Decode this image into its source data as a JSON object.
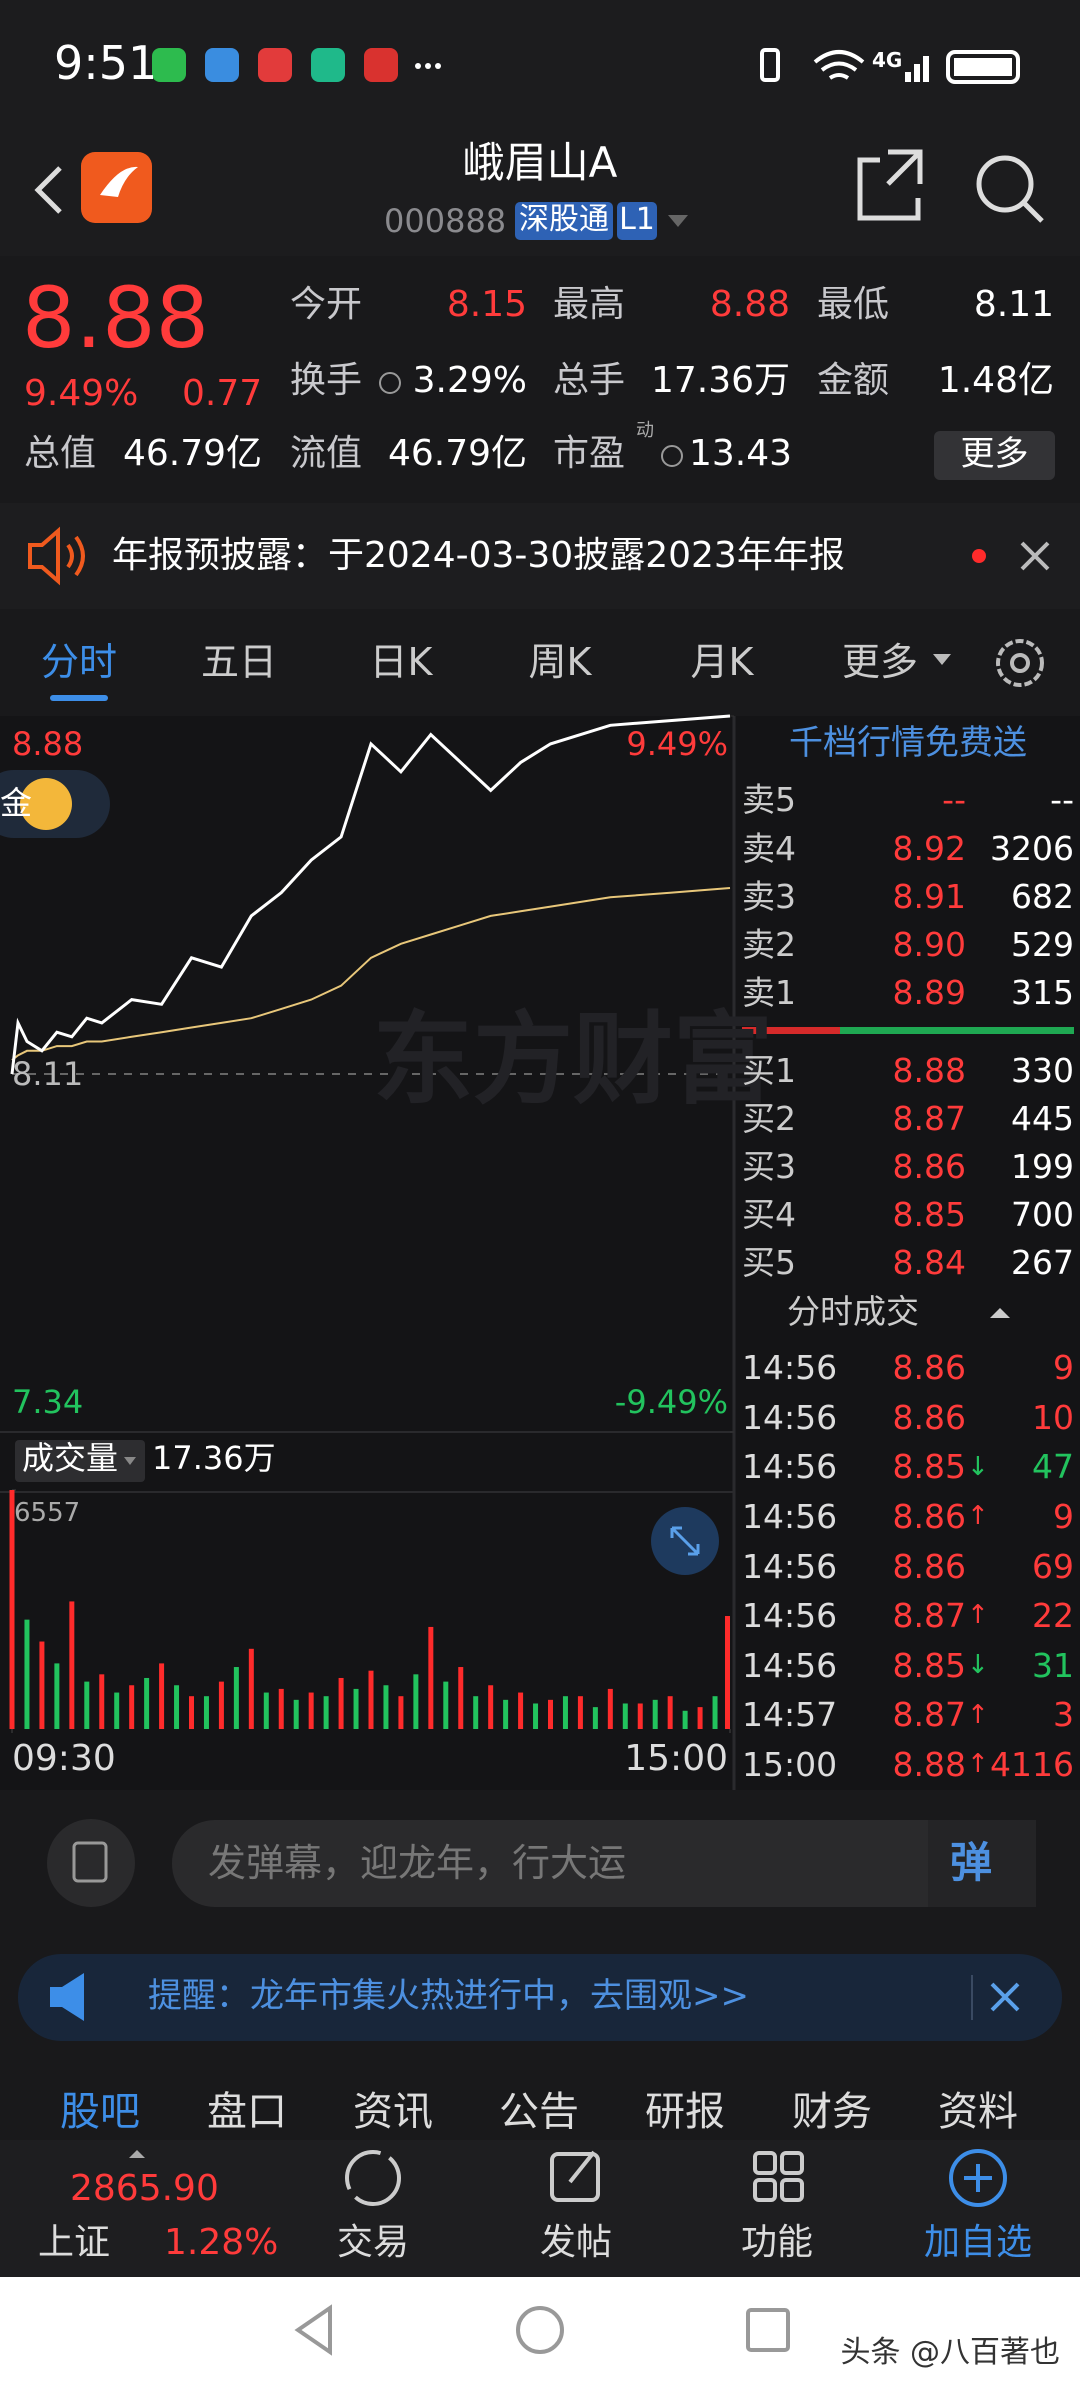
{
  "status_bar": {
    "time": "9:51",
    "network": "4G"
  },
  "header": {
    "title": "峨眉山A",
    "code": "000888",
    "badge": "深股通",
    "level": "L1"
  },
  "quote": {
    "price": "8.88",
    "change_pct": "9.49%",
    "change": "0.77",
    "fields": [
      {
        "label": "今开",
        "value": "8.15",
        "color": "#ff3b3b"
      },
      {
        "label": "最高",
        "value": "8.88",
        "color": "#ff3b3b"
      },
      {
        "label": "最低",
        "value": "8.11",
        "color": "#ffffff"
      },
      {
        "label": "换手",
        "value": "3.29%",
        "color": "#ffffff"
      },
      {
        "label": "总手",
        "value": "17.36万",
        "color": "#ffffff"
      },
      {
        "label": "金额",
        "value": "1.48亿",
        "color": "#ffffff"
      },
      {
        "label": "总值",
        "value": "46.79亿",
        "color": "#ffffff"
      },
      {
        "label": "流值",
        "value": "46.79亿",
        "color": "#ffffff"
      },
      {
        "label": "市盈",
        "value": "13.43",
        "color": "#ffffff"
      }
    ],
    "pe_superscript": "动",
    "more": "更多"
  },
  "notice": {
    "text": "年报预披露：于2024-03-30披露2023年年报"
  },
  "tabs": [
    "分时",
    "五日",
    "日K",
    "周K",
    "月K",
    "更多"
  ],
  "chart_watermark": "东方财富",
  "coin_badge": "金",
  "chart_data": [
    {
      "type": "line",
      "ylim": [
        7.34,
        8.88
      ],
      "yticks": [
        8.88,
        8.11,
        7.34
      ],
      "ytick_colors": [
        "#ff3b3b",
        "#bbbbbb",
        "#22c35e"
      ],
      "y2lim": [
        -9.49,
        9.49
      ],
      "y2ticks": [
        {
          "value": 9.49,
          "label": "9.49%"
        },
        {
          "value": -9.49,
          "label": "-9.49%"
        }
      ],
      "y2tick_colors": [
        "#ff3b3b",
        "#22c35e"
      ],
      "xlim": [
        0,
        240
      ],
      "series": [
        {
          "name": "价格",
          "color": "#ffffff",
          "x": [
            0,
            2,
            5,
            10,
            15,
            20,
            25,
            30,
            40,
            50,
            60,
            70,
            80,
            90,
            100,
            110,
            120,
            130,
            140,
            150,
            160,
            170,
            180,
            200,
            220,
            240
          ],
          "values": [
            8.11,
            8.22,
            8.18,
            8.16,
            8.2,
            8.19,
            8.23,
            8.22,
            8.27,
            8.26,
            8.36,
            8.34,
            8.45,
            8.5,
            8.57,
            8.62,
            8.82,
            8.76,
            8.84,
            8.78,
            8.72,
            8.78,
            8.82,
            8.86,
            8.87,
            8.88
          ]
        },
        {
          "name": "均价",
          "color": "#e8c77a",
          "x": [
            0,
            2,
            5,
            10,
            15,
            20,
            25,
            30,
            40,
            50,
            60,
            70,
            80,
            90,
            100,
            110,
            120,
            130,
            140,
            150,
            160,
            170,
            180,
            200,
            220,
            240
          ],
          "values": [
            8.14,
            8.15,
            8.16,
            8.16,
            8.17,
            8.17,
            8.18,
            8.18,
            8.19,
            8.2,
            8.21,
            8.22,
            8.23,
            8.25,
            8.27,
            8.3,
            8.36,
            8.39,
            8.41,
            8.43,
            8.45,
            8.46,
            8.47,
            8.49,
            8.5,
            8.51
          ]
        }
      ]
    },
    {
      "type": "bar",
      "title": "成交量",
      "total": "17.36万",
      "ylim": [
        0,
        6557
      ],
      "yticks": [
        6557
      ],
      "xlim": [
        0,
        240
      ],
      "xticks": [
        {
          "value": 0,
          "label": "09:30"
        },
        {
          "value": 240,
          "label": "15:00"
        }
      ],
      "series": [
        {
          "color": "#ff2b2b",
          "x": [
            0,
            10,
            20,
            30,
            40,
            50,
            60,
            70,
            80,
            90,
            100,
            110,
            120,
            130,
            140,
            150,
            160,
            170,
            180,
            190,
            200,
            210,
            220,
            230,
            240
          ],
          "values": [
            6557,
            2400,
            3500,
            1500,
            1200,
            1800,
            900,
            1300,
            2200,
            1100,
            1000,
            1400,
            1600,
            900,
            2800,
            1700,
            1200,
            1000,
            800,
            900,
            1100,
            700,
            900,
            600,
            3100
          ]
        },
        {
          "color": "#22c35e",
          "x": [
            5,
            15,
            25,
            35,
            45,
            55,
            65,
            75,
            85,
            95,
            105,
            115,
            125,
            135,
            145,
            155,
            165,
            175,
            185,
            195,
            205,
            215,
            225,
            235
          ],
          "values": [
            3000,
            1800,
            1300,
            1000,
            1400,
            1200,
            900,
            1700,
            1000,
            800,
            900,
            1100,
            1200,
            1500,
            1300,
            900,
            800,
            700,
            900,
            600,
            700,
            800,
            500,
            900
          ]
        }
      ]
    }
  ],
  "order_book": {
    "banner": "千档行情免费送",
    "asks": [
      {
        "label": "卖5",
        "price": "--",
        "volume": "--"
      },
      {
        "label": "卖4",
        "price": "8.92",
        "volume": "3206"
      },
      {
        "label": "卖3",
        "price": "8.91",
        "volume": "682"
      },
      {
        "label": "卖2",
        "price": "8.90",
        "volume": "529"
      },
      {
        "label": "卖1",
        "price": "8.89",
        "volume": "315"
      }
    ],
    "bids": [
      {
        "label": "买1",
        "price": "8.88",
        "volume": "330"
      },
      {
        "label": "买2",
        "price": "8.87",
        "volume": "445"
      },
      {
        "label": "买3",
        "price": "8.86",
        "volume": "199"
      },
      {
        "label": "买4",
        "price": "8.85",
        "volume": "700"
      },
      {
        "label": "买5",
        "price": "8.84",
        "volume": "267"
      }
    ]
  },
  "trades": {
    "title": "分时成交",
    "rows": [
      {
        "time": "14:56",
        "price": "8.86",
        "volume": "9",
        "color": "#ff3b3b"
      },
      {
        "time": "14:56",
        "price": "8.86",
        "volume": "10",
        "color": "#ff3b3b"
      },
      {
        "time": "14:56",
        "price": "8.85",
        "arrow": "↓",
        "volume": "47",
        "color": "#22c35e"
      },
      {
        "time": "14:56",
        "price": "8.86",
        "arrow": "↑",
        "volume": "9",
        "color": "#ff3b3b"
      },
      {
        "time": "14:56",
        "price": "8.86",
        "volume": "69",
        "color": "#ff3b3b"
      },
      {
        "time": "14:56",
        "price": "8.87",
        "arrow": "↑",
        "volume": "22",
        "color": "#ff3b3b"
      },
      {
        "time": "14:56",
        "price": "8.85",
        "arrow": "↓",
        "volume": "31",
        "color": "#22c35e"
      },
      {
        "time": "14:57",
        "price": "8.87",
        "arrow": "↑",
        "volume": "3",
        "color": "#ff3b3b"
      },
      {
        "time": "15:00",
        "price": "8.88",
        "arrow": "↑",
        "volume": "4116",
        "color": "#ff3b3b"
      }
    ]
  },
  "comment": {
    "placeholder": "发弹幕，迎龙年，行大运",
    "button": "弹"
  },
  "reminder": {
    "text": "提醒：龙年市集火热进行中，去围观>>"
  },
  "bottom_tabs": [
    "股吧",
    "盘口",
    "资讯",
    "公告",
    "研报",
    "财务",
    "资料"
  ],
  "nav": {
    "index_name": "上证",
    "index_value": "2865.90",
    "index_change": "1.28%",
    "items": [
      "交易",
      "发帖",
      "功能",
      "加自选"
    ]
  },
  "watermark": "头条 @八百著也"
}
